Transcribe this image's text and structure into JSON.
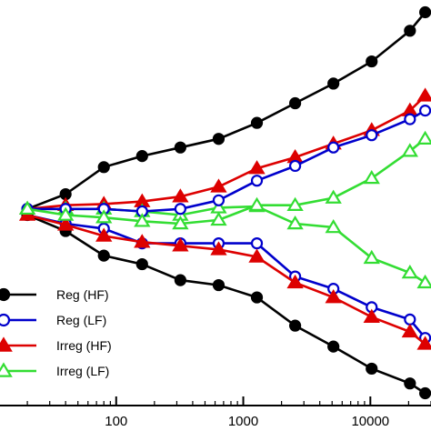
{
  "chart_data": {
    "type": "line",
    "xscale": "log",
    "xlim": [
      10,
      30000
    ],
    "ylim": [
      -1.6,
      1.7
    ],
    "x_ticks": [
      {
        "value": 100,
        "label": "100"
      },
      {
        "value": 1000,
        "label": "1000"
      },
      {
        "value": 10000,
        "label": "10000"
      }
    ],
    "legend_position": "bottom-left",
    "series": [
      {
        "name": "Reg (HF)",
        "color": "#000000",
        "marker": "circle-filled",
        "points": [
          [
            20,
            0.0
          ],
          [
            40,
            0.12
          ],
          [
            80,
            0.34
          ],
          [
            160,
            0.43
          ],
          [
            320,
            0.5
          ],
          [
            640,
            0.57
          ],
          [
            1280,
            0.7
          ],
          [
            2560,
            0.86
          ],
          [
            5120,
            1.02
          ],
          [
            10240,
            1.2
          ],
          [
            20480,
            1.45
          ],
          [
            27000,
            1.6
          ]
        ]
      },
      {
        "name": "Reg (LF)",
        "color": "#0000cc",
        "marker": "circle-open",
        "points": [
          [
            20,
            -0.05
          ],
          [
            40,
            -0.12
          ],
          [
            80,
            -0.16
          ],
          [
            160,
            -0.28
          ],
          [
            320,
            -0.28
          ],
          [
            640,
            -0.28
          ],
          [
            1280,
            -0.28
          ],
          [
            2560,
            -0.55
          ],
          [
            5120,
            -0.65
          ],
          [
            10240,
            -0.8
          ],
          [
            20480,
            -0.9
          ],
          [
            27000,
            -1.05
          ]
        ]
      },
      {
        "name": "Irreg (HF)",
        "color": "#dd0000",
        "marker": "triangle-filled",
        "points": [
          [
            20,
            0.0
          ],
          [
            40,
            0.03
          ],
          [
            80,
            0.04
          ],
          [
            160,
            0.06
          ],
          [
            320,
            0.1
          ],
          [
            640,
            0.18
          ],
          [
            1280,
            0.33
          ],
          [
            2560,
            0.42
          ],
          [
            5120,
            0.53
          ],
          [
            10240,
            0.64
          ],
          [
            20480,
            0.8
          ],
          [
            27000,
            0.92
          ]
        ]
      },
      {
        "name": "Irreg (LF)",
        "color": "#33dd33",
        "marker": "triangle-open",
        "points": [
          [
            20,
            0.0
          ],
          [
            40,
            0.0
          ],
          [
            80,
            0.0
          ],
          [
            160,
            -0.02
          ],
          [
            320,
            -0.05
          ],
          [
            640,
            0.01
          ],
          [
            1280,
            0.02
          ],
          [
            2560,
            -0.12
          ],
          [
            5120,
            -0.15
          ],
          [
            10240,
            -0.4
          ],
          [
            20480,
            -0.52
          ],
          [
            27000,
            -0.6
          ]
        ]
      },
      {
        "name": "",
        "color": "#000000",
        "marker": "circle-filled",
        "legend": false,
        "points": [
          [
            20,
            -0.05
          ],
          [
            40,
            -0.18
          ],
          [
            80,
            -0.38
          ],
          [
            160,
            -0.45
          ],
          [
            320,
            -0.58
          ],
          [
            640,
            -0.62
          ],
          [
            1280,
            -0.72
          ],
          [
            2560,
            -0.95
          ],
          [
            5120,
            -1.12
          ],
          [
            10240,
            -1.3
          ],
          [
            20480,
            -1.42
          ],
          [
            27000,
            -1.5
          ]
        ]
      },
      {
        "name": "",
        "color": "#0000cc",
        "marker": "circle-open",
        "legend": false,
        "points": [
          [
            20,
            0.0
          ],
          [
            40,
            0.0
          ],
          [
            80,
            0.0
          ],
          [
            160,
            -0.02
          ],
          [
            320,
            0.0
          ],
          [
            640,
            0.07
          ],
          [
            1280,
            0.23
          ],
          [
            2560,
            0.35
          ],
          [
            5120,
            0.5
          ],
          [
            10240,
            0.6
          ],
          [
            20480,
            0.73
          ],
          [
            27000,
            0.8
          ]
        ]
      },
      {
        "name": "",
        "color": "#dd0000",
        "marker": "triangle-filled",
        "legend": false,
        "points": [
          [
            20,
            -0.05
          ],
          [
            40,
            -0.13
          ],
          [
            80,
            -0.22
          ],
          [
            160,
            -0.27
          ],
          [
            320,
            -0.3
          ],
          [
            640,
            -0.33
          ],
          [
            1280,
            -0.39
          ],
          [
            2560,
            -0.6
          ],
          [
            5120,
            -0.72
          ],
          [
            10240,
            -0.88
          ],
          [
            20480,
            -1.0
          ],
          [
            27000,
            -1.1
          ]
        ]
      },
      {
        "name": "",
        "color": "#33dd33",
        "marker": "triangle-open",
        "legend": false,
        "points": [
          [
            20,
            0.0
          ],
          [
            40,
            -0.05
          ],
          [
            80,
            -0.07
          ],
          [
            160,
            -0.1
          ],
          [
            320,
            -0.12
          ],
          [
            640,
            -0.09
          ],
          [
            1280,
            0.03
          ],
          [
            2560,
            0.03
          ],
          [
            5120,
            0.09
          ],
          [
            10240,
            0.25
          ],
          [
            20480,
            0.47
          ],
          [
            27000,
            0.57
          ]
        ]
      }
    ]
  }
}
